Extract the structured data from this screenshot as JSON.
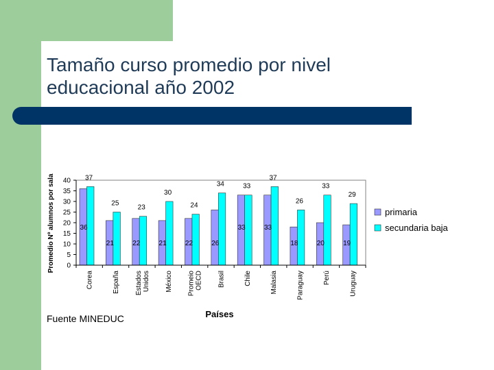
{
  "slide": {
    "title_line1": "Tamaño curso promedio por nivel",
    "title_line2": "educacional año 2002",
    "source": "Fuente MINEDUC"
  },
  "colors": {
    "primaria": "#9999ff",
    "secundaria_baja": "#00ffff",
    "accent_bar": "#003366",
    "green": "#9dcd9a",
    "title_text": "#1f3b57"
  },
  "chart_data": {
    "type": "bar",
    "xlabel": "Países",
    "ylabel": "Promedio Nº alumnos por sala",
    "ylim": [
      0,
      40
    ],
    "yticks": [
      0,
      5,
      10,
      15,
      20,
      25,
      30,
      35,
      40
    ],
    "legend_position": "right",
    "categories": [
      [
        "Corea"
      ],
      [
        "España"
      ],
      [
        "Estados",
        "Unidos"
      ],
      [
        "México"
      ],
      [
        "Promeio",
        "OECD"
      ],
      [
        "Brasil"
      ],
      [
        "Chile"
      ],
      [
        "Malasia"
      ],
      [
        "Paraguay"
      ],
      [
        "Perú"
      ],
      [
        "Uruguay"
      ]
    ],
    "series": [
      {
        "name": "primaria",
        "values": [
          36,
          21,
          22,
          21,
          22,
          26,
          33,
          33,
          18,
          20,
          19
        ]
      },
      {
        "name": "secundaria baja",
        "values": [
          37,
          25,
          23,
          30,
          24,
          34,
          33,
          37,
          26,
          33,
          29
        ]
      }
    ]
  }
}
